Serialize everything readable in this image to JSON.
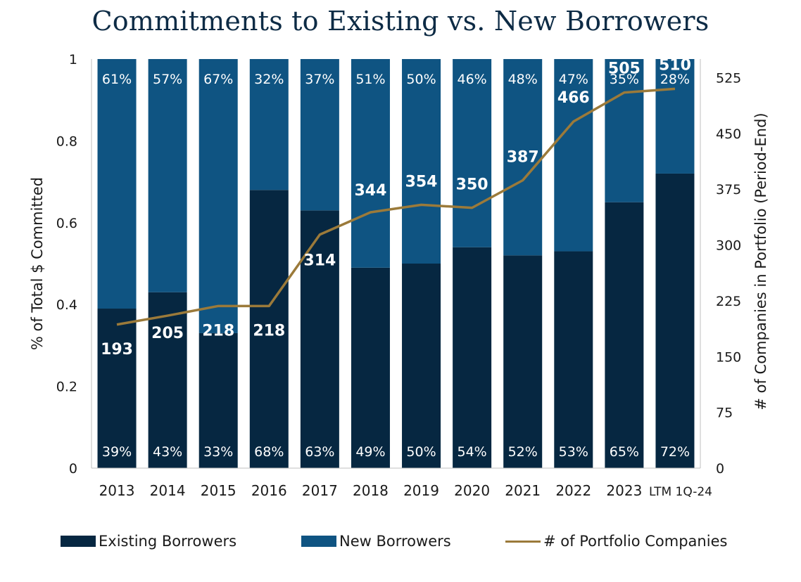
{
  "chart_data": {
    "type": "bar",
    "title": "Commitments to Existing vs. New Borrowers",
    "categories": [
      "2013",
      "2014",
      "2015",
      "2016",
      "2017",
      "2018",
      "2019",
      "2020",
      "2021",
      "2022",
      "2023",
      "LTM 1Q-24"
    ],
    "series": [
      {
        "name": "Existing Borrowers",
        "values": [
          0.39,
          0.43,
          0.33,
          0.68,
          0.63,
          0.49,
          0.5,
          0.54,
          0.52,
          0.53,
          0.65,
          0.72
        ],
        "labels": [
          "39%",
          "43%",
          "33%",
          "68%",
          "63%",
          "49%",
          "50%",
          "54%",
          "52%",
          "53%",
          "65%",
          "72%"
        ],
        "color": "#062741"
      },
      {
        "name": "New Borrowers",
        "values": [
          0.61,
          0.57,
          0.67,
          0.32,
          0.37,
          0.51,
          0.5,
          0.46,
          0.48,
          0.47,
          0.35,
          0.28
        ],
        "labels": [
          "61%",
          "57%",
          "67%",
          "32%",
          "37%",
          "51%",
          "50%",
          "46%",
          "48%",
          "47%",
          "35%",
          "28%"
        ],
        "color": "#0f5482"
      },
      {
        "name": "# of Portfolio Companies",
        "type": "line",
        "axis": "right",
        "values": [
          193,
          205,
          218,
          218,
          314,
          344,
          354,
          350,
          387,
          466,
          505,
          510
        ],
        "color": "#9b7a3a"
      }
    ],
    "ylabel": "% of Total $ Committed",
    "y2label": "# of Companies in Portfolio (Period-End)",
    "ylim": [
      0,
      1
    ],
    "y2lim": [
      0,
      550
    ],
    "yticks": [
      "0",
      "0.2",
      "0.4",
      "0.6",
      "0.8",
      "1"
    ],
    "y2ticks": [
      "0",
      "75",
      "150",
      "225",
      "300",
      "375",
      "450",
      "525"
    ],
    "grid": false,
    "legend_position": "bottom"
  }
}
